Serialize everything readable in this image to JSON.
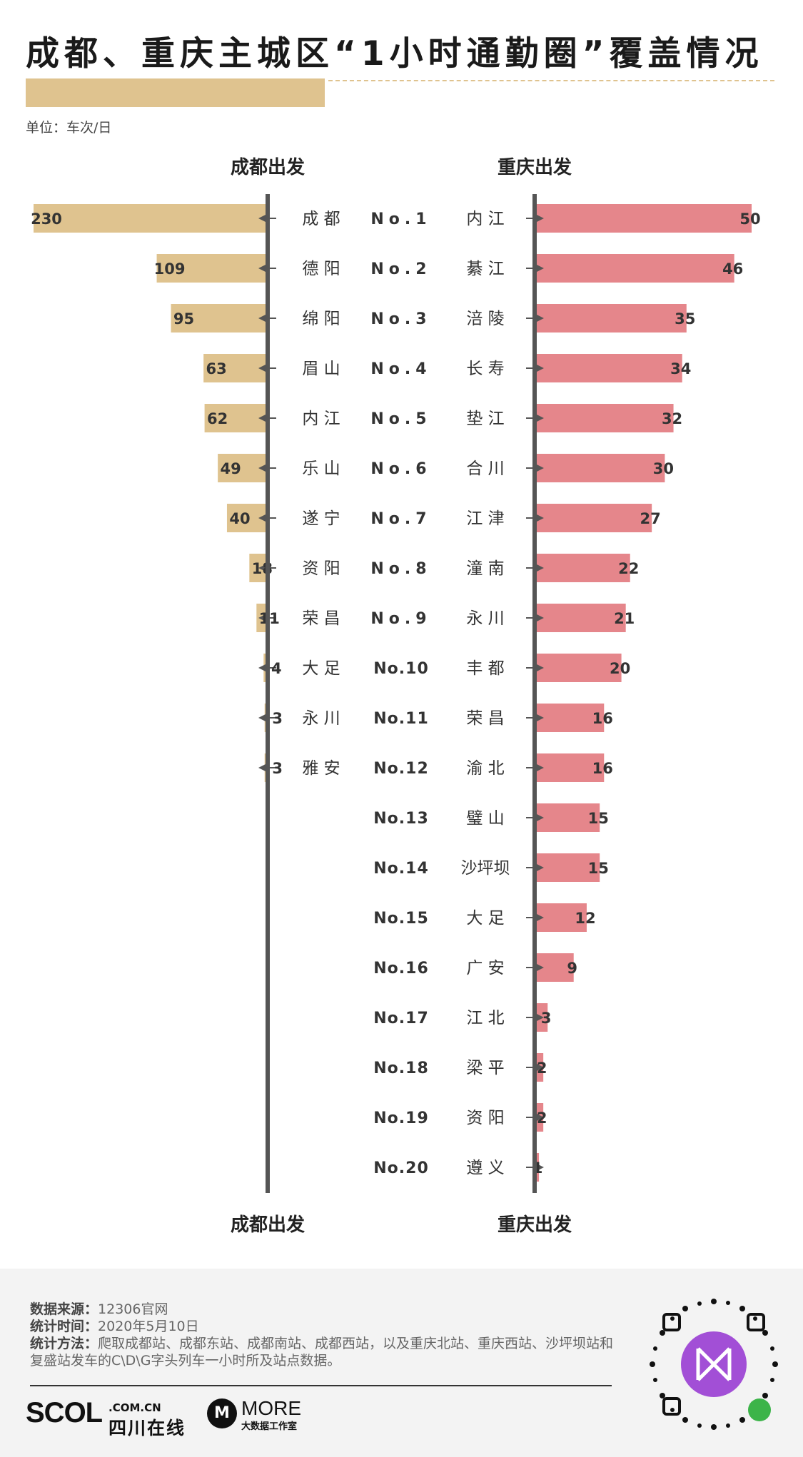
{
  "title": "成都、重庆主城区“1小时通勤圈”覆盖情况",
  "unit": "单位：车次/日",
  "colors": {
    "chengdu": "#dfc38f",
    "chongqing": "#e5868b",
    "axis": "#555555",
    "accent": "#dfc38f"
  },
  "chart_data": [
    {
      "type": "bar",
      "orientation": "horizontal",
      "header": "成都出发",
      "footer_label": "成都出发",
      "categories": [
        "成 都",
        "德 阳",
        "绵 阳",
        "眉 山",
        "内 江",
        "乐 山",
        "遂 宁",
        "资 阳",
        "荣 昌",
        "大 足",
        "永 川",
        "雅 安"
      ],
      "values": [
        230,
        109,
        95,
        63,
        62,
        49,
        40,
        18,
        11,
        4,
        3,
        3
      ]
    },
    {
      "type": "bar",
      "orientation": "horizontal",
      "header": "重庆出发",
      "footer_label": "重庆出发",
      "ranks": [
        "No.1",
        "No.2",
        "No.3",
        "No.4",
        "No.5",
        "No.6",
        "No.7",
        "No.8",
        "No.9",
        "No.10",
        "No.11",
        "No.12",
        "No.13",
        "No.14",
        "No.15",
        "No.16",
        "No.17",
        "No.18",
        "No.19",
        "No.20"
      ],
      "categories": [
        "内 江",
        "綦 江",
        "涪 陵",
        "长 寿",
        "垫 江",
        "合 川",
        "江 津",
        "潼 南",
        "永 川",
        "丰 都",
        "荣 昌",
        "渝 北",
        "璧 山",
        "沙坪坝",
        "大 足",
        "广 安",
        "江 北",
        "梁 平",
        "资 阳",
        "遵 义"
      ],
      "values": [
        50,
        46,
        35,
        34,
        32,
        30,
        27,
        22,
        21,
        20,
        16,
        16,
        15,
        15,
        12,
        9,
        3,
        2,
        2,
        1
      ]
    }
  ],
  "footer": {
    "source_key": "数据来源：",
    "source": "12306官网",
    "time_key": "统计时间：",
    "time": "2020年5月10日",
    "method_key": "统计方法：",
    "method": "爬取成都站、成都东站、成都南站、成都西站，以及重庆北站、重庆西站、沙坪坝站和复盛站发车的C\\D\\G字头列车一小时所及站点数据。",
    "logo_scol": "SCOL",
    "logo_scol_domain": ".COM.CN",
    "logo_scol_name": "四川在线",
    "logo_more": "MORE",
    "logo_more_sub": "大数据工作室"
  }
}
